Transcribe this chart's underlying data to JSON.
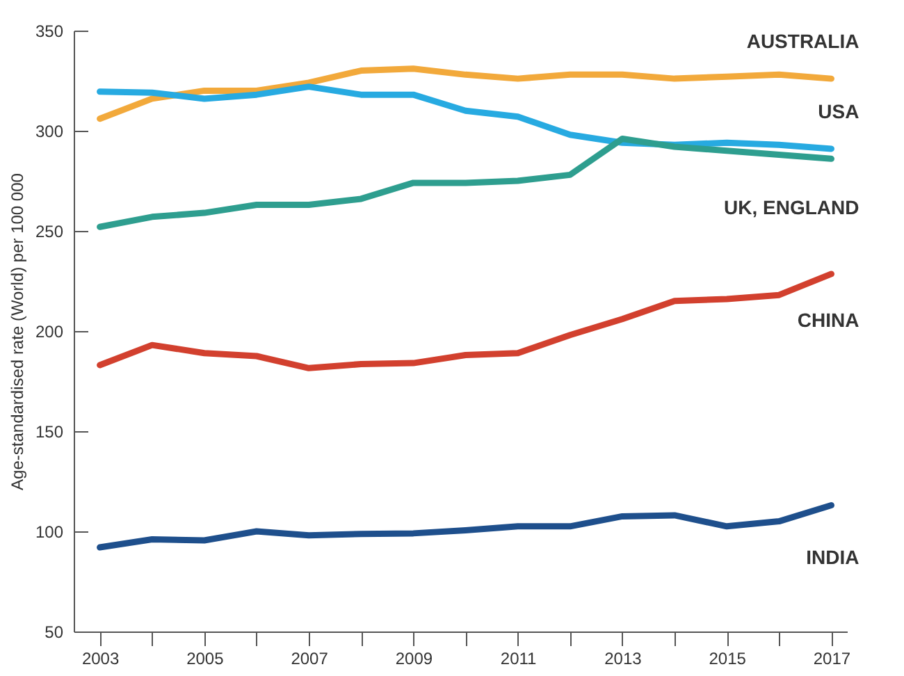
{
  "chart_data": {
    "type": "line",
    "ylabel": "Age-standardised rate (World) per 100 000",
    "x": [
      2003,
      2004,
      2005,
      2006,
      2007,
      2008,
      2009,
      2010,
      2011,
      2012,
      2013,
      2014,
      2015,
      2016,
      2017
    ],
    "series": [
      {
        "name": "AUSTRALIA",
        "color": "#f2a93b",
        "values": [
          306,
          316,
          320,
          320,
          324,
          330,
          331,
          328,
          326,
          328,
          328,
          326,
          327,
          328,
          326
        ]
      },
      {
        "name": "USA",
        "color": "#27aae1",
        "values": [
          319.5,
          319,
          316,
          318,
          322,
          318,
          318,
          310,
          307,
          298,
          294,
          293,
          294,
          293,
          291
        ]
      },
      {
        "name": "UK, ENGLAND",
        "color": "#2e9e8f",
        "values": [
          252,
          257,
          259,
          263,
          263,
          266,
          274,
          274,
          275,
          278,
          296,
          292,
          290,
          288,
          286
        ]
      },
      {
        "name": "CHINA",
        "color": "#d2402e",
        "values": [
          183,
          193,
          189,
          187.5,
          181.5,
          183.5,
          184,
          188,
          189,
          198,
          206,
          215,
          216,
          218,
          228.5
        ]
      },
      {
        "name": "INDIA",
        "color": "#1e4f8c",
        "values": [
          92,
          96,
          95.5,
          100,
          98,
          98.7,
          99,
          100.5,
          102.5,
          102.5,
          107.5,
          108,
          102.5,
          105,
          113
        ]
      }
    ],
    "xlim": [
      2002.5,
      2017.3
    ],
    "xticks": [
      2003,
      {
        "value": 2004,
        "label": null
      },
      2005,
      {
        "value": 2006,
        "label": null
      },
      2007,
      {
        "value": 2008,
        "label": null
      },
      2009,
      {
        "value": 2010,
        "label": null
      },
      2011,
      {
        "value": 2012,
        "label": null
      },
      2013,
      {
        "value": 2014,
        "label": null
      },
      2015,
      {
        "value": 2016,
        "label": null
      },
      2017
    ],
    "ylim": [
      50,
      350
    ],
    "yticks": [
      50,
      100,
      150,
      200,
      250,
      300,
      350
    ],
    "grid": false,
    "legend": false,
    "line_style": "solid",
    "marker": "none"
  }
}
